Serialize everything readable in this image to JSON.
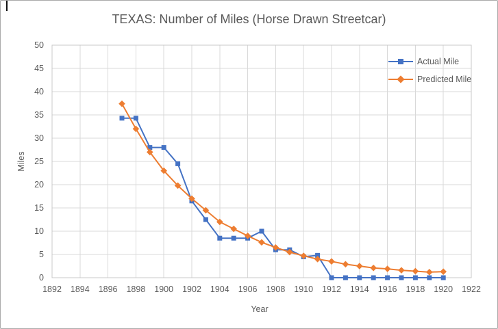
{
  "colors": {
    "actual": "#4472C4",
    "predicted": "#ED7D31",
    "gridline": "#D9D9D9",
    "plot_border": "#C9C9C9",
    "axis_text": "#595959",
    "title_text": "#595959",
    "canvas_border": "#A9A9A9"
  },
  "chart_data": {
    "type": "line",
    "title": "TEXAS: Number of Miles (Horse Drawn Streetcar)",
    "xlabel": "Year",
    "ylabel": "Miles",
    "xlim": [
      1892,
      1922
    ],
    "ylim": [
      0,
      50
    ],
    "x_ticks": [
      1892,
      1894,
      1896,
      1898,
      1900,
      1902,
      1904,
      1906,
      1908,
      1910,
      1912,
      1914,
      1916,
      1918,
      1920,
      1922
    ],
    "y_ticks": [
      0,
      5,
      10,
      15,
      20,
      25,
      30,
      35,
      40,
      45,
      50
    ],
    "grid": true,
    "legend_position": "top-right-inside",
    "x": [
      1897,
      1898,
      1899,
      1900,
      1901,
      1902,
      1903,
      1904,
      1905,
      1906,
      1907,
      1908,
      1909,
      1910,
      1911,
      1912,
      1913,
      1914,
      1915,
      1916,
      1917,
      1918,
      1919,
      1920
    ],
    "series": [
      {
        "name": "Actual Mile",
        "marker": "square",
        "color": "#4472C4",
        "values": [
          34.3,
          34.3,
          28,
          28,
          24.5,
          16.5,
          12.5,
          8.5,
          8.5,
          8.5,
          10,
          6,
          6,
          4.5,
          4.8,
          0,
          0,
          0,
          0,
          0,
          0,
          0,
          0,
          0
        ]
      },
      {
        "name": "Predicted Mile",
        "marker": "diamond",
        "color": "#ED7D31",
        "values": [
          37.4,
          32,
          27,
          23,
          19.8,
          17,
          14.5,
          12,
          10.5,
          9,
          7.6,
          6.5,
          5.5,
          4.7,
          4,
          3.5,
          2.9,
          2.5,
          2.1,
          1.9,
          1.6,
          1.4,
          1.2,
          1.3
        ]
      }
    ]
  }
}
